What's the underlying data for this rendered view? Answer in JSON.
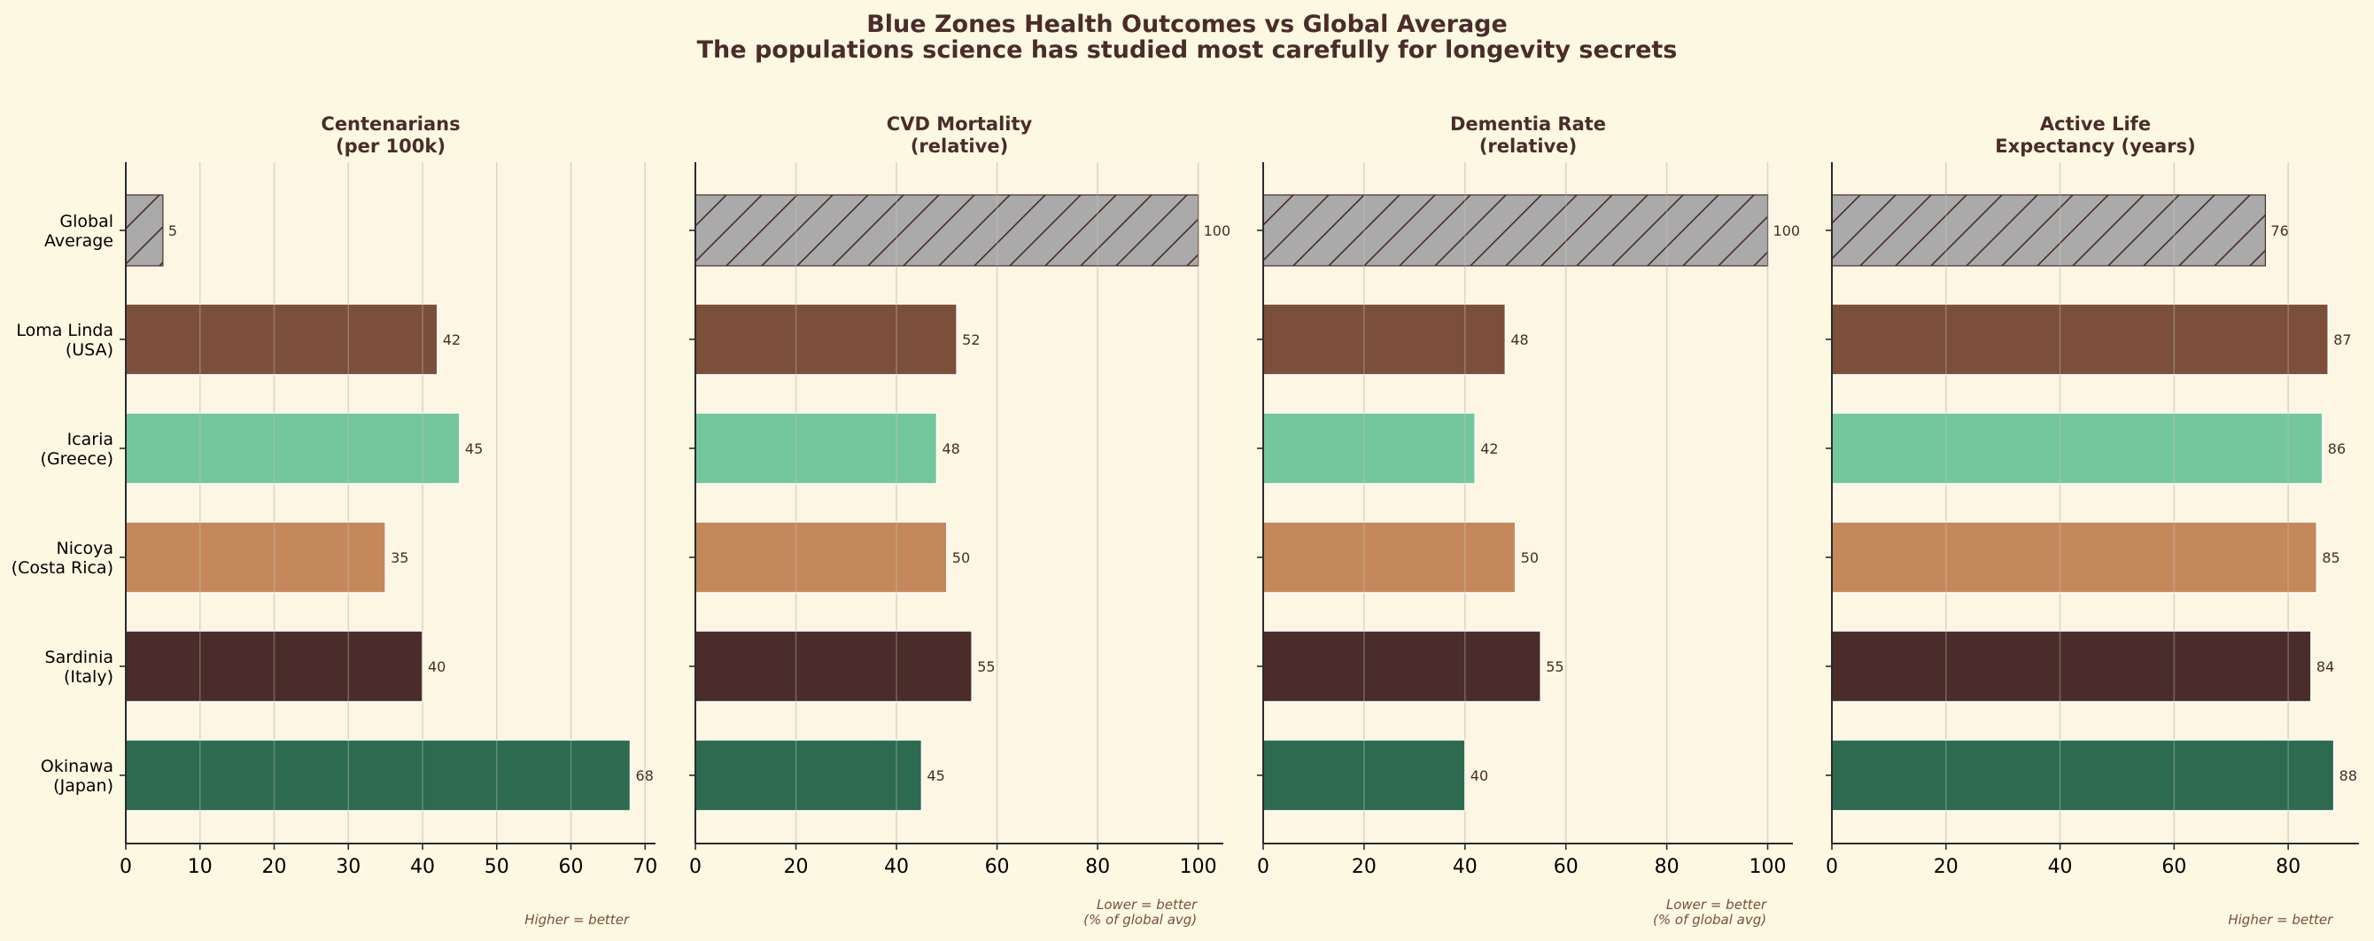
{
  "title": "Blue Zones Health Outcomes vs Global Average",
  "subtitle": "The populations science has studied most carefully for longevity secrets",
  "colors": {
    "background": "#fdf8e1",
    "plot_background": "#fdf6e3",
    "text": "#4a2c2a",
    "note": "#7b4f3a",
    "Global Average": "#aaaaaa",
    "Loma Linda (USA)": "#7b4f3a",
    "Icaria (Greece)": "#74c69d",
    "Nicoya (Costa Rica)": "#c4885a",
    "Sardinia (Italy)": "#4a2c2a",
    "Okinawa (Japan)": "#2d6a4f"
  },
  "chart_data": [
    {
      "type": "bar",
      "orientation": "horizontal",
      "title": "Centenarians\n(per 100k)",
      "categories": [
        "Global\nAverage",
        "Loma Linda\n(USA)",
        "Icaria\n(Greece)",
        "Nicoya\n(Costa Rica)",
        "Sardinia\n(Italy)",
        "Okinawa\n(Japan)"
      ],
      "values": [
        5,
        42,
        45,
        35,
        40,
        68
      ],
      "value_labels": [
        "5",
        "42",
        "45",
        "35",
        "40",
        "68"
      ],
      "xlim": [
        0,
        71.4
      ],
      "xticks": [
        0,
        10,
        20,
        30,
        40,
        50,
        60,
        70
      ],
      "grid": "x",
      "hatched": "Global Average",
      "note": "Higher = better"
    },
    {
      "type": "bar",
      "orientation": "horizontal",
      "title": "CVD Mortality\n(relative)",
      "categories": [
        "Global\nAverage",
        "Loma Linda\n(USA)",
        "Icaria\n(Greece)",
        "Nicoya\n(Costa Rica)",
        "Sardinia\n(Italy)",
        "Okinawa\n(Japan)"
      ],
      "values": [
        100,
        52,
        48,
        50,
        55,
        45
      ],
      "value_labels": [
        "100",
        "52",
        "48",
        "50",
        "55",
        "45"
      ],
      "xlim": [
        0,
        105
      ],
      "xticks": [
        0,
        20,
        40,
        60,
        80,
        100
      ],
      "grid": "x",
      "hatched": "Global Average",
      "note": "Lower = better\n(% of global avg)"
    },
    {
      "type": "bar",
      "orientation": "horizontal",
      "title": "Dementia Rate\n(relative)",
      "categories": [
        "Global\nAverage",
        "Loma Linda\n(USA)",
        "Icaria\n(Greece)",
        "Nicoya\n(Costa Rica)",
        "Sardinia\n(Italy)",
        "Okinawa\n(Japan)"
      ],
      "values": [
        100,
        48,
        42,
        50,
        55,
        40
      ],
      "value_labels": [
        "100",
        "48",
        "42",
        "50",
        "55",
        "40"
      ],
      "xlim": [
        0,
        105
      ],
      "xticks": [
        0,
        20,
        40,
        60,
        80,
        100
      ],
      "grid": "x",
      "hatched": "Global Average",
      "note": "Lower = better\n(% of global avg)"
    },
    {
      "type": "bar",
      "orientation": "horizontal",
      "title": "Active Life\nExpectancy (years)",
      "categories": [
        "Global\nAverage",
        "Loma Linda\n(USA)",
        "Icaria\n(Greece)",
        "Nicoya\n(Costa Rica)",
        "Sardinia\n(Italy)",
        "Okinawa\n(Japan)"
      ],
      "values": [
        76,
        87,
        86,
        85,
        84,
        88
      ],
      "value_labels": [
        "76",
        "87",
        "86",
        "85",
        "84",
        "88"
      ],
      "xlim": [
        0,
        92.4
      ],
      "xticks": [
        0,
        20,
        40,
        60,
        80
      ],
      "grid": "x",
      "hatched": "Global Average",
      "note": "Higher = better"
    }
  ]
}
